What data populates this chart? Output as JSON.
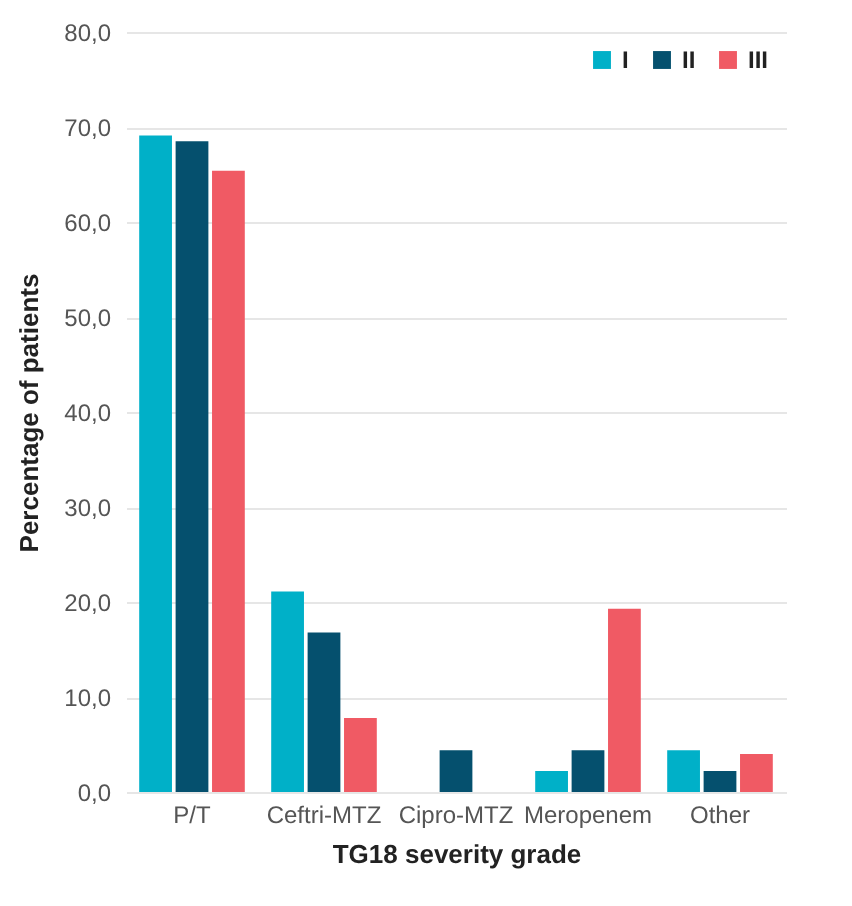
{
  "chart_data": {
    "type": "bar",
    "xlabel": "TG18 severity grade",
    "ylabel": "Percentage of patients",
    "categories": [
      "P/T",
      "Ceftri-MTZ",
      "Cipro-MTZ",
      "Meropenem",
      "Other"
    ],
    "series": [
      {
        "name": "I",
        "color": "#00b0c8",
        "values": [
          69.1,
          21.1,
          0,
          2.2,
          4.4
        ]
      },
      {
        "name": "II",
        "color": "#05506e",
        "values": [
          68.5,
          16.8,
          4.4,
          4.4,
          2.2
        ]
      },
      {
        "name": "III",
        "color": "#f05a64",
        "values": [
          65.4,
          7.8,
          0,
          19.3,
          4.0
        ]
      }
    ],
    "ylim": [
      0,
      80
    ],
    "yticks": [
      {
        "value": 0,
        "label": "0,0"
      },
      {
        "value": 10,
        "label": "10,0"
      },
      {
        "value": 20,
        "label": "20,0"
      },
      {
        "value": 30,
        "label": "30,0"
      },
      {
        "value": 40,
        "label": "40,0"
      },
      {
        "value": 50,
        "label": "50,0"
      },
      {
        "value": 60,
        "label": "60,0"
      },
      {
        "value": 70,
        "label": "70,0"
      },
      {
        "value": 80,
        "label": "80,0"
      }
    ],
    "grid": true,
    "legend": "top right"
  }
}
